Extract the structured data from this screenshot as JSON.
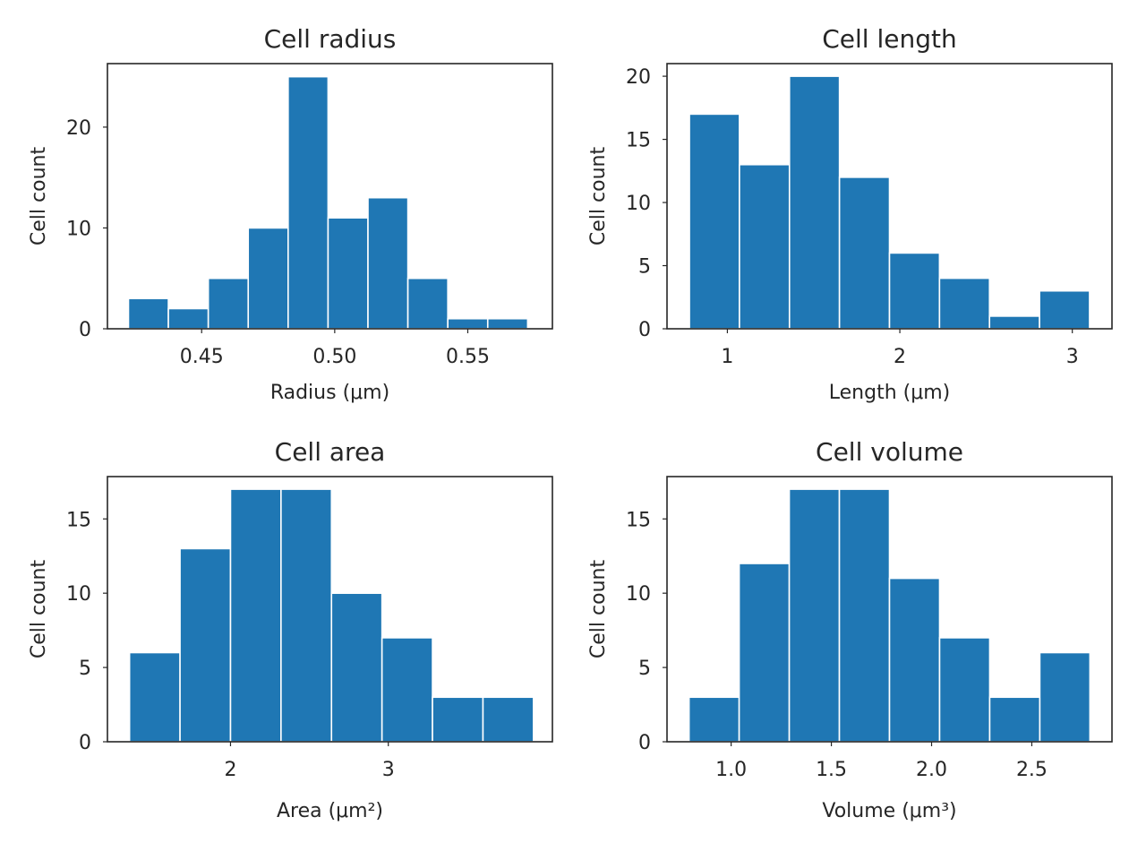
{
  "chart_data": [
    {
      "type": "bar",
      "title": "Cell radius",
      "xlabel": "Radius (μm)",
      "ylabel": "Cell count",
      "color": "#1f77b4",
      "bin_edges": [
        0.4225,
        0.4375,
        0.4525,
        0.4675,
        0.4825,
        0.4975,
        0.5125,
        0.5275,
        0.5425,
        0.5575,
        0.5725
      ],
      "values": [
        3,
        2,
        5,
        10,
        25,
        11,
        13,
        5,
        1,
        1
      ],
      "xlim": [
        0.4146,
        0.5818
      ],
      "ylim": [
        0,
        26.3
      ],
      "xticks": [
        {
          "v": 0.45,
          "label": "0.45"
        },
        {
          "v": 0.5,
          "label": "0.50"
        },
        {
          "v": 0.55,
          "label": "0.55"
        }
      ],
      "yticks": [
        {
          "v": 0,
          "label": "0"
        },
        {
          "v": 10,
          "label": "10"
        },
        {
          "v": 20,
          "label": "20"
        }
      ],
      "grid": false
    },
    {
      "type": "bar",
      "title": "Cell length",
      "xlabel": "Length (μm)",
      "ylabel": "Cell count",
      "color": "#1f77b4",
      "bin_edges": [
        0.78,
        1.07,
        1.36,
        1.65,
        1.94,
        2.23,
        2.52,
        2.81,
        3.1
      ],
      "values": [
        17,
        13,
        20,
        12,
        6,
        4,
        1,
        3
      ],
      "xlim": [
        0.65,
        3.23
      ],
      "ylim": [
        0,
        21
      ],
      "xticks": [
        {
          "v": 1,
          "label": "1"
        },
        {
          "v": 2,
          "label": "2"
        },
        {
          "v": 3,
          "label": "3"
        }
      ],
      "yticks": [
        {
          "v": 0,
          "label": "0"
        },
        {
          "v": 5,
          "label": "5"
        },
        {
          "v": 10,
          "label": "10"
        },
        {
          "v": 15,
          "label": "15"
        },
        {
          "v": 20,
          "label": "20"
        }
      ],
      "grid": false
    },
    {
      "type": "bar",
      "title": "Cell area",
      "xlabel": "Area (μm²)",
      "ylabel": "Cell count",
      "color": "#1f77b4",
      "bin_edges": [
        1.36,
        1.68,
        2.0,
        2.32,
        2.64,
        2.96,
        3.28,
        3.6,
        3.92
      ],
      "values": [
        6,
        13,
        17,
        17,
        10,
        7,
        3,
        3
      ],
      "xlim": [
        1.22,
        4.04
      ],
      "ylim": [
        0,
        17.85
      ],
      "xticks": [
        {
          "v": 2,
          "label": "2"
        },
        {
          "v": 3,
          "label": "3"
        }
      ],
      "yticks": [
        {
          "v": 0,
          "label": "0"
        },
        {
          "v": 5,
          "label": "5"
        },
        {
          "v": 10,
          "label": "10"
        },
        {
          "v": 15,
          "label": "15"
        }
      ],
      "grid": false
    },
    {
      "type": "bar",
      "title": "Cell volume",
      "xlabel": "Volume (μm³)",
      "ylabel": "Cell count",
      "color": "#1f77b4",
      "bin_edges": [
        0.79,
        1.04,
        1.29,
        1.54,
        1.79,
        2.04,
        2.29,
        2.54,
        2.79
      ],
      "values": [
        3,
        12,
        17,
        17,
        11,
        7,
        3,
        6
      ],
      "xlim": [
        0.68,
        2.9
      ],
      "ylim": [
        0,
        17.85
      ],
      "xticks": [
        {
          "v": 1.0,
          "label": "1.0"
        },
        {
          "v": 1.5,
          "label": "1.5"
        },
        {
          "v": 2.0,
          "label": "2.0"
        },
        {
          "v": 2.5,
          "label": "2.5"
        }
      ],
      "yticks": [
        {
          "v": 0,
          "label": "0"
        },
        {
          "v": 5,
          "label": "5"
        },
        {
          "v": 10,
          "label": "10"
        },
        {
          "v": 15,
          "label": "15"
        }
      ],
      "grid": false
    }
  ]
}
